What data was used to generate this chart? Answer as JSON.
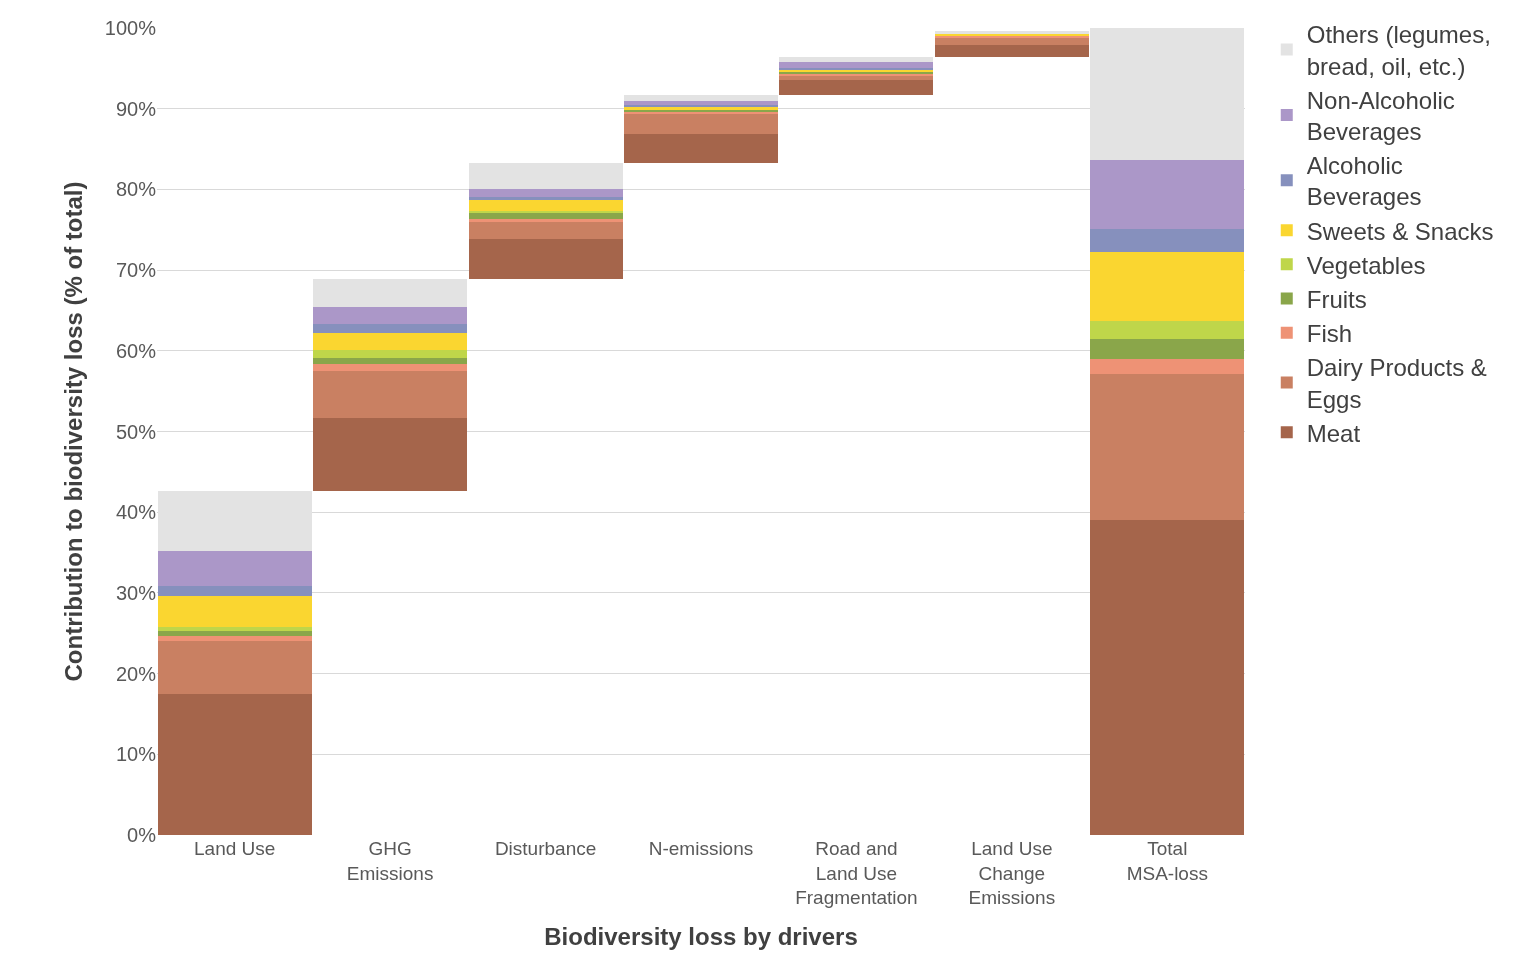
{
  "chart_data": {
    "type": "bar",
    "xlabel": "Biodiversity loss by drivers",
    "ylabel": "Contribution to biodiversity loss (% of total)",
    "categories": [
      "Land Use",
      "GHG Emissions",
      "Disturbance",
      "N-emissions",
      "Road and Land Use Fragmentation",
      "Land Use Change Emissions",
      "Total MSA-loss"
    ],
    "series": [
      {
        "name": "Meat",
        "color": "#a5654b",
        "values": [
          17.5,
          9.1,
          5.0,
          3.6,
          1.8,
          1.5,
          39.0
        ],
        "base": [
          0,
          42.6,
          68.9,
          83.3,
          91.7,
          96.4,
          0
        ]
      },
      {
        "name": "Dairy Products & Eggs",
        "color": "#c98062",
        "values": [
          6.5,
          5.8,
          2.0,
          2.5,
          0.5,
          0.8,
          18.1
        ],
        "base": [
          17.5,
          51.7,
          73.9,
          86.9,
          93.5,
          97.9,
          39.0
        ]
      },
      {
        "name": "Fish",
        "color": "#ee9275",
        "values": [
          0.6,
          0.9,
          0.4,
          0.2,
          0.3,
          0.4,
          1.9
        ],
        "base": [
          24.0,
          57.5,
          75.9,
          89.4,
          94.0,
          98.7,
          57.1
        ]
      },
      {
        "name": "Fruits",
        "color": "#8aa64a",
        "values": [
          0.7,
          0.7,
          0.8,
          0.2,
          0.2,
          null,
          2.5
        ],
        "base": [
          24.6,
          58.4,
          76.3,
          89.6,
          94.3,
          null,
          59.0
        ]
      },
      {
        "name": "Vegetables",
        "color": "#bfd64a",
        "values": [
          0.5,
          1.0,
          0.2,
          null,
          null,
          null,
          2.2
        ],
        "base": [
          25.3,
          59.1,
          77.1,
          null,
          null,
          null,
          61.5
        ]
      },
      {
        "name": "Sweets & Snacks",
        "color": "#fad630",
        "values": [
          3.8,
          2.1,
          1.5,
          0.5,
          0.4,
          0.2,
          8.5
        ],
        "base": [
          25.8,
          60.1,
          77.3,
          89.8,
          94.5,
          99.1,
          63.7
        ]
      },
      {
        "name": "Alcoholic Beverages",
        "color": "#8690bd",
        "values": [
          1.3,
          1.1,
          0.2,
          0.1,
          0.2,
          null,
          2.9
        ],
        "base": [
          29.6,
          62.2,
          78.8,
          90.3,
          94.9,
          null,
          72.2
        ]
      },
      {
        "name": "Non-Alcoholic Beverages",
        "color": "#ab97c8",
        "values": [
          4.3,
          2.1,
          1.0,
          0.5,
          0.7,
          null,
          8.6
        ],
        "base": [
          30.9,
          63.3,
          79.0,
          90.4,
          95.1,
          null,
          75.1
        ]
      },
      {
        "name": "Others (legumes, bread, oil, etc.)",
        "color": "#e3e3e3",
        "values": [
          7.4,
          3.5,
          3.3,
          0.8,
          0.6,
          0.3,
          16.3
        ],
        "base": [
          35.2,
          65.4,
          80.0,
          90.9,
          95.8,
          99.3,
          83.7
        ]
      }
    ],
    "ylim": [
      0,
      100
    ],
    "yticks": [
      {
        "value": 0,
        "label": "0%"
      },
      {
        "value": 10,
        "label": "10%"
      },
      {
        "value": 20,
        "label": "20%"
      },
      {
        "value": 30,
        "label": "30%"
      },
      {
        "value": 40,
        "label": "40%"
      },
      {
        "value": 50,
        "label": "50%"
      },
      {
        "value": 60,
        "label": "60%"
      },
      {
        "value": 70,
        "label": "70%"
      },
      {
        "value": 80,
        "label": "80%"
      },
      {
        "value": 90,
        "label": "90%"
      },
      {
        "value": 100,
        "label": "100%"
      }
    ],
    "grid": "y",
    "legend": "right"
  }
}
